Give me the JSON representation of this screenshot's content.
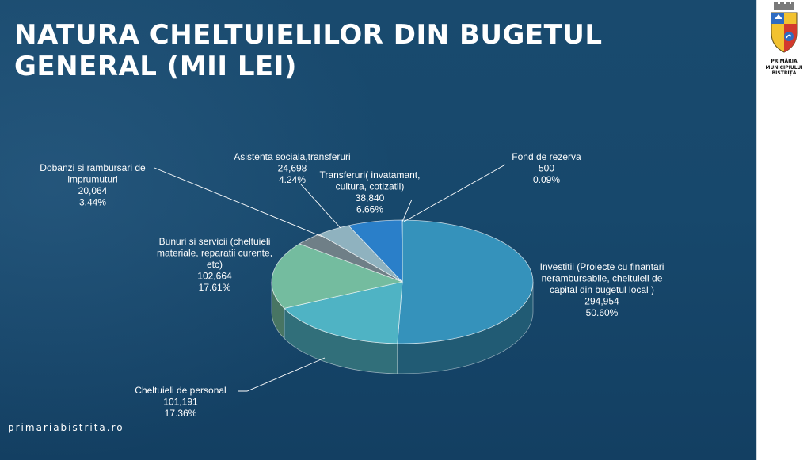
{
  "slide": {
    "title": "NATURA CHELTUIELILOR DIN BUGETUL\nGENERAL (MII LEI)",
    "website": "primariabistrita.ro",
    "logo": {
      "name_lines": [
        "PRIMĂRIA",
        "MUNICIPIULUI",
        "BISTRIȚA"
      ],
      "icon": "city-coat-of-arms"
    }
  },
  "chart_data": {
    "type": "pie",
    "title": "NATURA CHELTUIELILOR DIN BUGETUL GENERAL (MII LEI)",
    "units": "mii lei",
    "slices": [
      {
        "label": "Investitii (Proiecte cu finantari nerambursabile, cheltuieli de capital din bugetul local )",
        "lines": [
          "Investitii (Proiecte cu finantari",
          "nerambursabile, cheltuieli de",
          "capital din bugetul local )"
        ],
        "value_text": "294,954",
        "value": 294954,
        "pct_text": "50.60%",
        "pct": 50.6,
        "color": "#3592bb"
      },
      {
        "label": "Cheltuieli de personal",
        "lines": [
          "Cheltuieli de personal"
        ],
        "value_text": "101,191",
        "value": 101191,
        "pct_text": "17.36%",
        "pct": 17.36,
        "color": "#4fb3c4"
      },
      {
        "label": "Bunuri si servicii (cheltuieli materiale, reparatii curente, etc)",
        "lines": [
          "Bunuri si servicii (cheltuieli",
          "materiale, reparatii curente,",
          "etc)"
        ],
        "value_text": "102,664",
        "value": 102664,
        "pct_text": "17.61%",
        "pct": 17.61,
        "color": "#74bc9f"
      },
      {
        "label": "Dobanzi si rambursari de imprumuturi",
        "lines": [
          "Dobanzi si rambursari de",
          "imprumuturi"
        ],
        "value_text": "20,064",
        "value": 20064,
        "pct_text": "3.44%",
        "pct": 3.44,
        "color": "#6f7f87"
      },
      {
        "label": "Asistenta sociala,transferuri",
        "lines": [
          "Asistenta sociala,transferuri"
        ],
        "value_text": "24,698",
        "value": 24698,
        "pct_text": "4.24%",
        "pct": 4.24,
        "color": "#8fb2bf"
      },
      {
        "label": "Transferuri( invatamant, cultura, cotizatii)",
        "lines": [
          "Transferuri( invatamant,",
          "cultura, cotizatii)"
        ],
        "value_text": "38,840",
        "value": 38840,
        "pct_text": "6.66%",
        "pct": 6.66,
        "color": "#2a7fc9"
      },
      {
        "label": "Fond de rezerva",
        "lines": [
          "Fond de rezerva"
        ],
        "value_text": "500",
        "value": 500,
        "pct_text": "0.09%",
        "pct": 0.09,
        "color": "#5aa6d6"
      }
    ]
  }
}
